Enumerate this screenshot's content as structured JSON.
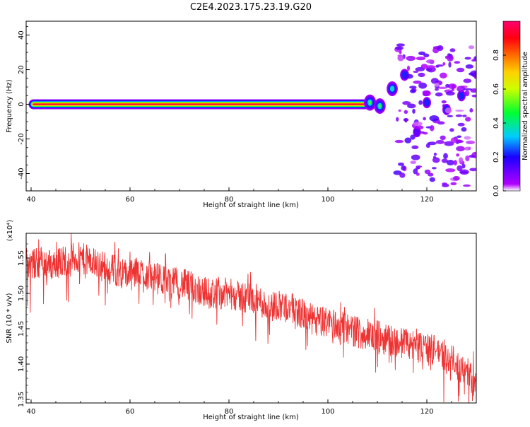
{
  "title": "C2E4.2023.175.23.19.G20",
  "chart_data": [
    {
      "type": "heatmap",
      "xlabel": "Height of straight line (km)",
      "ylabel": "Frequency (Hz)",
      "xlim": [
        39,
        130
      ],
      "ylim": [
        -50,
        48
      ],
      "xticks": [
        "40",
        "60",
        "80",
        "100",
        "120"
      ],
      "yticks": [
        "40",
        "20",
        "0",
        "-20",
        "-40"
      ],
      "colorbar": {
        "label": "Normalized spectral amplitude",
        "range": [
          0.0,
          1.0
        ],
        "ticks": [
          "0.0",
          "0.2",
          "0.4",
          "0.6",
          "0.8"
        ],
        "colormap": "gist_rainbow"
      },
      "features": [
        {
          "kind": "steady-carrier",
          "x_range": [
            40.5,
            107.5
          ],
          "freq": 0
        },
        {
          "kind": "blob",
          "x": 108.5,
          "freq": 1,
          "amp": 0.55
        },
        {
          "kind": "blob",
          "x": 110.5,
          "freq": -1,
          "amp": 0.5
        },
        {
          "kind": "blob",
          "x": 113,
          "freq": 9,
          "amp": 0.45
        },
        {
          "kind": "blob",
          "x": 115.5,
          "freq": 17,
          "amp": 0.25
        },
        {
          "kind": "blob",
          "x": 120,
          "freq": 1,
          "amp": 0.2
        },
        {
          "kind": "blob",
          "x": 124,
          "freq": -3,
          "amp": 0.2
        },
        {
          "kind": "blob",
          "x": 127,
          "freq": 5,
          "amp": 0.2
        },
        {
          "kind": "blob",
          "x": 118,
          "freq": -16,
          "amp": 0.15
        },
        {
          "kind": "scatter-noise",
          "x_range": [
            114,
            130
          ],
          "freq_range": [
            -48,
            35
          ],
          "amp_range": [
            0.02,
            0.15
          ]
        }
      ]
    },
    {
      "type": "line",
      "xlabel": "Height of straight line (km)",
      "ylabel": "SNR (10 * v/v)",
      "y_multiplier": "(x10⁴)",
      "xlim": [
        39,
        130
      ],
      "ylim": [
        1.345,
        1.585
      ],
      "xticks": [
        "40",
        "60",
        "80",
        "100",
        "120"
      ],
      "yticks": [
        "1.55",
        "1.50",
        "1.45",
        "1.40",
        "1.35"
      ],
      "color": "#ee3333",
      "x": [
        39,
        40,
        42,
        44,
        46,
        48,
        50,
        52,
        54,
        56,
        58,
        60,
        62,
        64,
        66,
        68,
        70,
        72,
        74,
        76,
        78,
        80,
        82,
        84,
        86,
        88,
        90,
        92,
        94,
        96,
        98,
        100,
        102,
        104,
        106,
        108,
        110,
        112,
        114,
        116,
        118,
        120,
        122,
        124,
        126,
        128,
        130
      ],
      "y": [
        1.535,
        1.54,
        1.545,
        1.54,
        1.545,
        1.55,
        1.55,
        1.545,
        1.54,
        1.535,
        1.53,
        1.525,
        1.53,
        1.525,
        1.52,
        1.515,
        1.515,
        1.51,
        1.505,
        1.5,
        1.5,
        1.5,
        1.495,
        1.495,
        1.49,
        1.48,
        1.485,
        1.48,
        1.475,
        1.465,
        1.46,
        1.46,
        1.455,
        1.45,
        1.445,
        1.44,
        1.44,
        1.435,
        1.43,
        1.43,
        1.425,
        1.42,
        1.42,
        1.41,
        1.4,
        1.39,
        1.37
      ]
    }
  ]
}
